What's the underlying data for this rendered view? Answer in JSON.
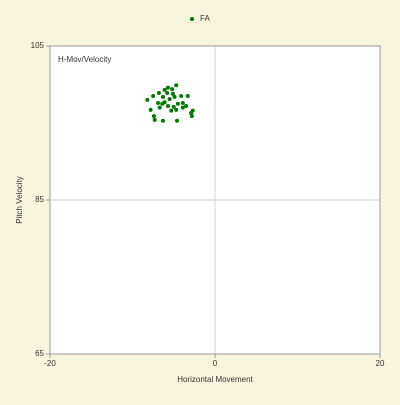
{
  "chart_data": {
    "type": "scatter",
    "annotation": "H-Mov/Velocity",
    "x_label": "Horizontal Movement",
    "y_label": "Pitch Velocity",
    "xlim": [
      -20,
      20
    ],
    "xticks": [
      -20,
      0,
      20
    ],
    "ylim": [
      65,
      105
    ],
    "yticks": [
      65,
      85,
      105
    ],
    "grid": true,
    "legend": "top",
    "series": [
      {
        "name": "FA",
        "color": "#007a00",
        "x": [
          -8.2,
          -7.5,
          -6.8,
          -6.1,
          -5.7,
          -4.7,
          -5.2,
          -6.3,
          -6.1,
          -5.5,
          -4.9,
          -4.1,
          -3.3,
          -3.9,
          -3.5,
          -2.9,
          -2.7,
          -2.8,
          -4.6,
          -5.3,
          -4.7,
          -6.3,
          -7.3,
          -7.4,
          -7.8,
          -6.7,
          -5.7,
          -5.0,
          -4.5,
          -3.9,
          -6.4,
          -5.8,
          -5.1,
          -6.9
        ],
        "values": [
          98.0,
          98.5,
          98.9,
          99.3,
          99.6,
          99.9,
          99.4,
          98.4,
          97.7,
          98.1,
          98.4,
          98.5,
          98.5,
          97.6,
          97.2,
          96.3,
          96.6,
          95.9,
          95.3,
          96.6,
          96.7,
          95.3,
          95.4,
          95.9,
          96.7,
          97.0,
          97.2,
          97.1,
          97.5,
          97.0,
          97.5,
          98.9,
          98.8,
          97.6
        ]
      }
    ]
  }
}
